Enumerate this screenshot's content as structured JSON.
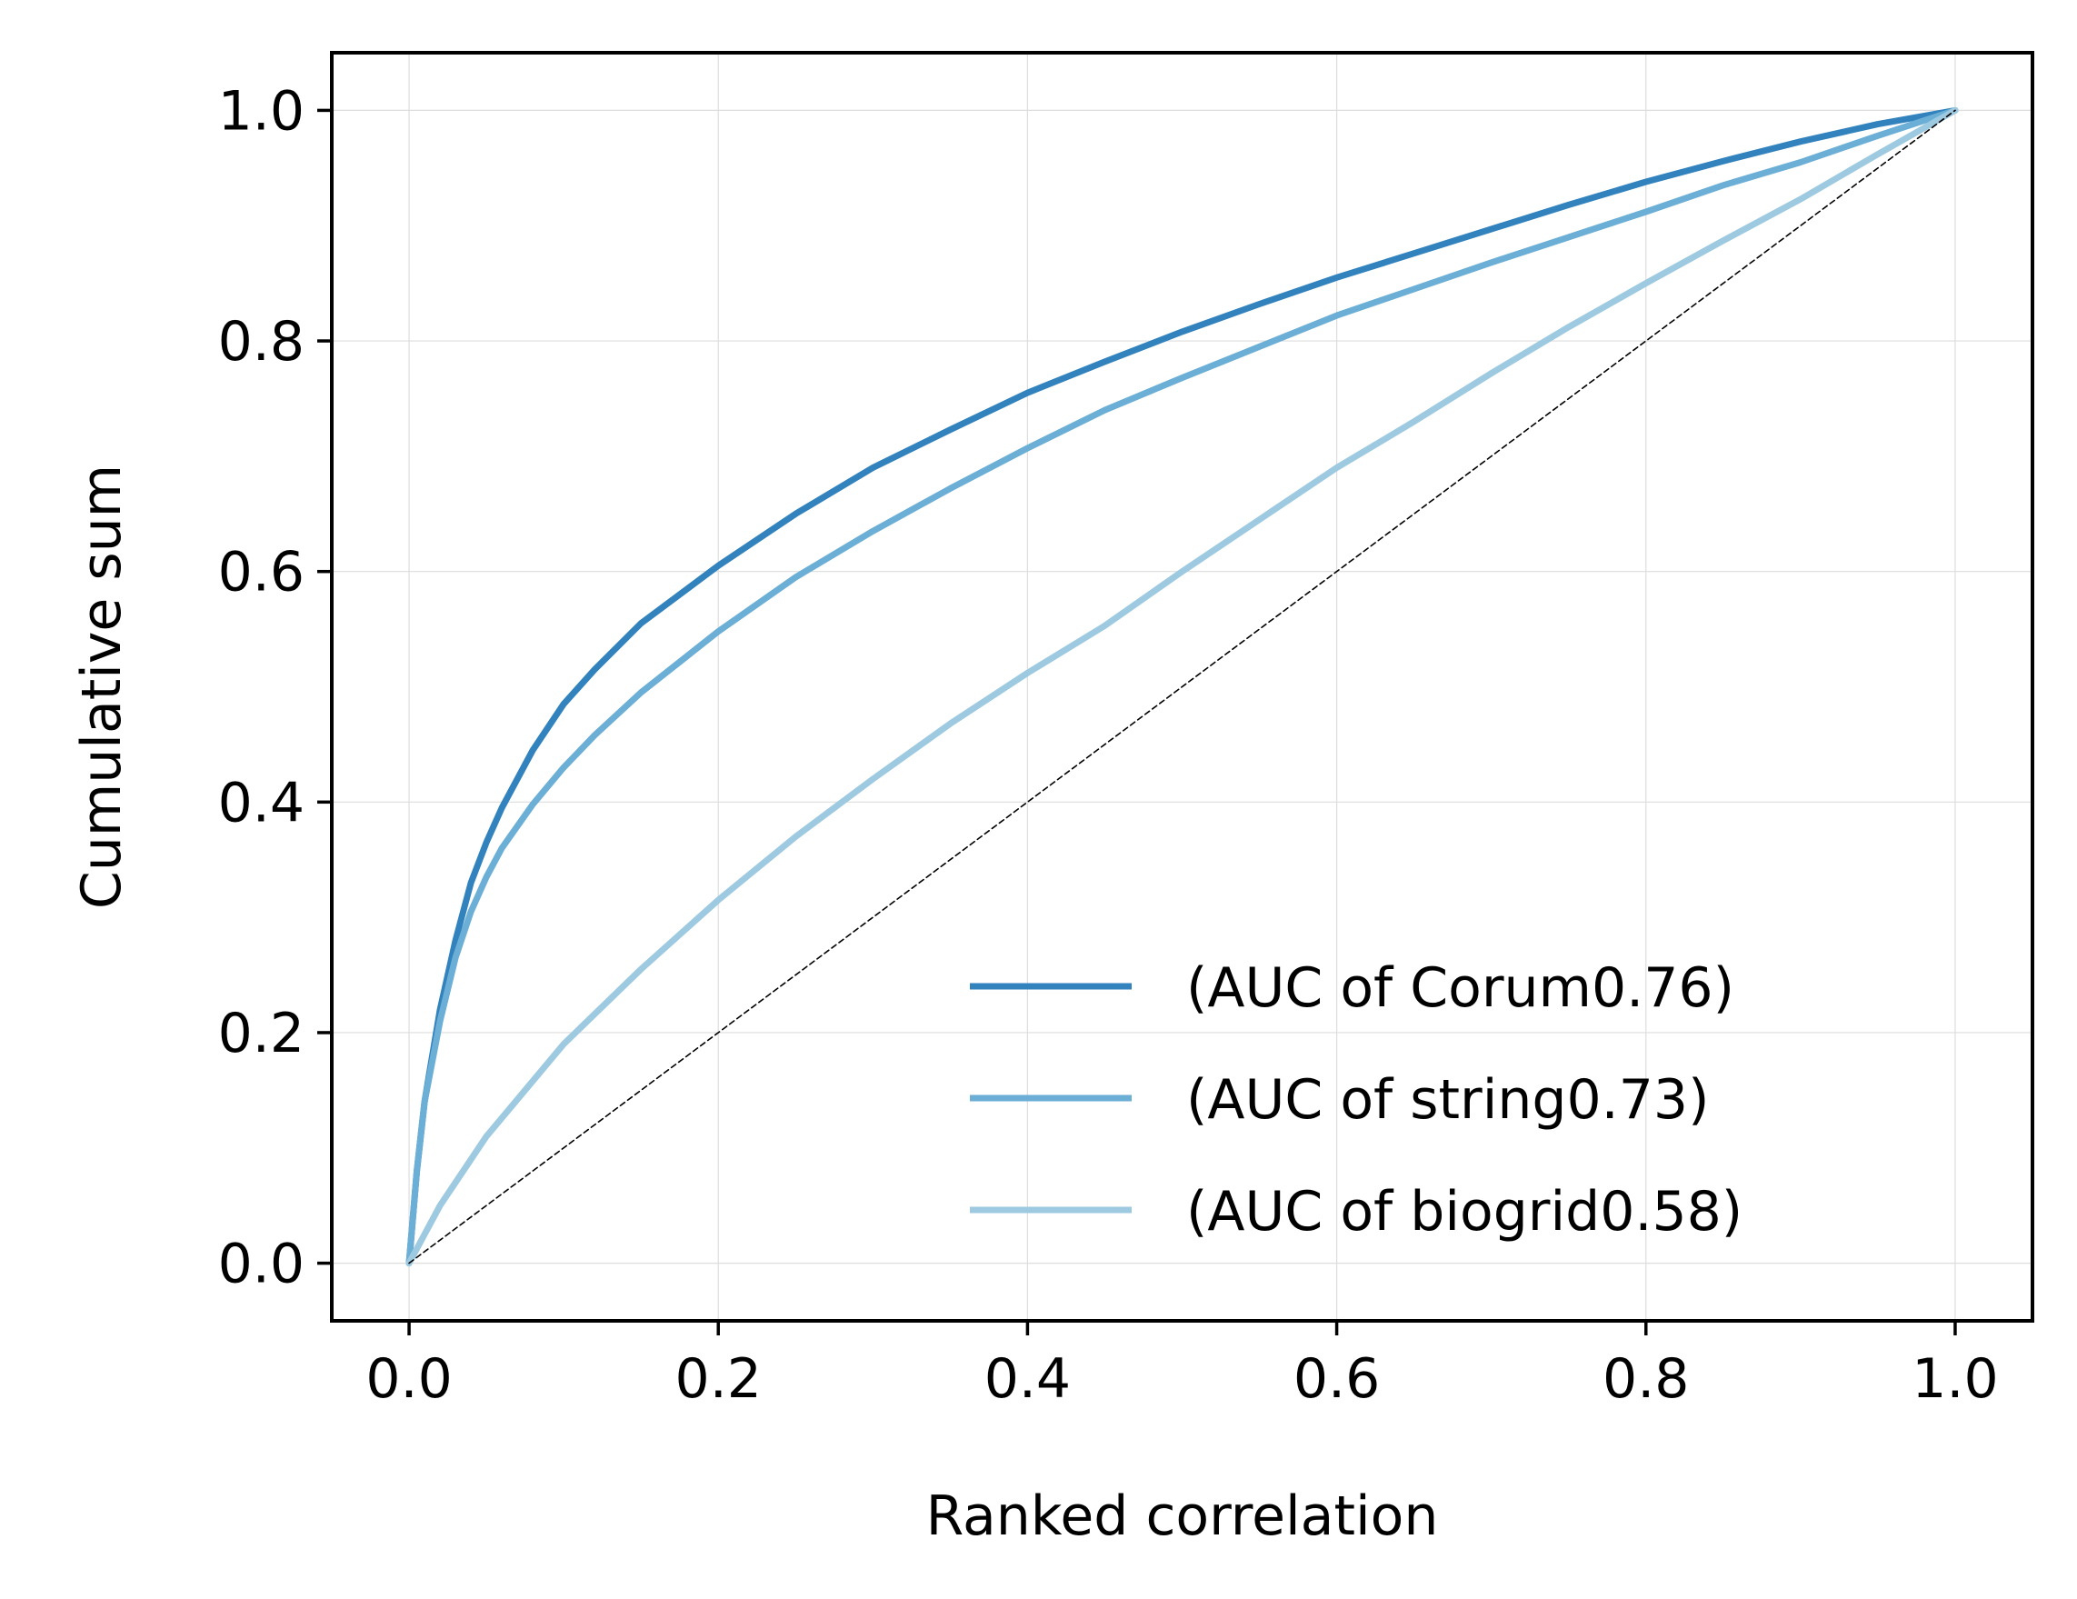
{
  "chart_data": {
    "type": "line",
    "title": "",
    "xlabel": "Ranked correlation",
    "ylabel": "Cumulative sum",
    "xlim": [
      -0.05,
      1.05
    ],
    "ylim": [
      -0.05,
      1.05
    ],
    "xticks": [
      0.0,
      0.2,
      0.4,
      0.6,
      0.8,
      1.0
    ],
    "yticks": [
      0.0,
      0.2,
      0.4,
      0.6,
      0.8,
      1.0
    ],
    "xtick_labels": [
      "0.0",
      "0.2",
      "0.4",
      "0.6",
      "0.8",
      "1.0"
    ],
    "ytick_labels": [
      "0.0",
      "0.2",
      "0.4",
      "0.6",
      "0.8",
      "1.0"
    ],
    "grid": true,
    "legend_position": "lower-right",
    "series": [
      {
        "name": "(AUC of Corum0.76)",
        "color": "#3182bd",
        "x": [
          0,
          0.005,
          0.01,
          0.02,
          0.03,
          0.04,
          0.05,
          0.06,
          0.08,
          0.1,
          0.12,
          0.15,
          0.2,
          0.25,
          0.3,
          0.35,
          0.4,
          0.45,
          0.5,
          0.55,
          0.6,
          0.65,
          0.7,
          0.75,
          0.8,
          0.85,
          0.9,
          0.95,
          1.0
        ],
        "y": [
          0,
          0.08,
          0.14,
          0.22,
          0.28,
          0.33,
          0.365,
          0.395,
          0.445,
          0.485,
          0.515,
          0.555,
          0.605,
          0.65,
          0.69,
          0.723,
          0.755,
          0.782,
          0.808,
          0.832,
          0.855,
          0.876,
          0.897,
          0.918,
          0.938,
          0.956,
          0.973,
          0.988,
          1.0
        ]
      },
      {
        "name": "(AUC of string0.73)",
        "color": "#6baed6",
        "x": [
          0,
          0.005,
          0.01,
          0.02,
          0.03,
          0.04,
          0.05,
          0.06,
          0.08,
          0.1,
          0.12,
          0.15,
          0.2,
          0.25,
          0.3,
          0.35,
          0.4,
          0.45,
          0.5,
          0.55,
          0.6,
          0.65,
          0.7,
          0.75,
          0.8,
          0.85,
          0.9,
          0.95,
          1.0
        ],
        "y": [
          0,
          0.08,
          0.14,
          0.21,
          0.265,
          0.305,
          0.335,
          0.36,
          0.398,
          0.43,
          0.458,
          0.495,
          0.548,
          0.595,
          0.635,
          0.672,
          0.707,
          0.74,
          0.768,
          0.795,
          0.822,
          0.845,
          0.868,
          0.89,
          0.912,
          0.935,
          0.955,
          0.978,
          1.0
        ]
      },
      {
        "name": "(AUC of biogrid0.58)",
        "color": "#9ecae1",
        "x": [
          0,
          0.02,
          0.05,
          0.1,
          0.15,
          0.2,
          0.25,
          0.3,
          0.35,
          0.4,
          0.45,
          0.5,
          0.55,
          0.6,
          0.65,
          0.7,
          0.75,
          0.8,
          0.85,
          0.9,
          0.95,
          1.0
        ],
        "y": [
          0,
          0.05,
          0.11,
          0.19,
          0.255,
          0.315,
          0.37,
          0.42,
          0.468,
          0.512,
          0.553,
          0.6,
          0.645,
          0.69,
          0.73,
          0.772,
          0.812,
          0.85,
          0.887,
          0.923,
          0.962,
          1.0
        ]
      },
      {
        "name": "",
        "color": "#000000",
        "style": "dashed",
        "x": [
          0,
          1
        ],
        "y": [
          0,
          1
        ]
      }
    ]
  }
}
